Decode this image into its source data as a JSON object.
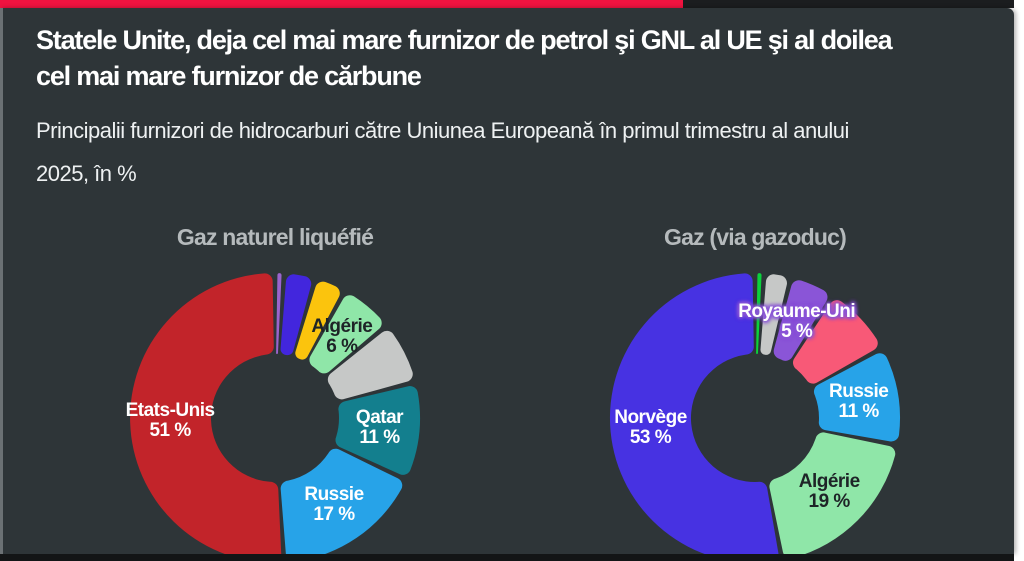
{
  "page": {
    "accent_bar_color": "#f01340",
    "top_strip_color": "#1b1d1f",
    "panel_background_color": "#2e3538",
    "bottom_strip_color": "#131516",
    "headline_color": "#ffffff",
    "chart_title_color": "#b5babc"
  },
  "header": {
    "title": "Statele Unite, deja cel mai mare furnizor de petrol şi GNL al UE şi al doilea cel mai mare furnizor de cărbune",
    "title_lines": [
      "Statele Unite, deja cel mai mare furnizor de petrol şi GNL al UE şi al doilea",
      "cel mai mare furnizor de cărbune"
    ],
    "subtitle": "Principalii furnizori de hidrocarburi către Uniunea Europeană în primul trimestru al anului 2025, în %",
    "subtitle_lines": [
      "Principalii furnizori de hidrocarburi către Uniunea Europeană în primul trimestru al anului",
      "2025, în %"
    ]
  },
  "chart_data": [
    {
      "type": "pie",
      "title": "Gaz naturel liquéfié",
      "unit": "%",
      "donut": true,
      "start_angle_deg": 0,
      "direction": "clockwise",
      "slices": [
        {
          "label": null,
          "value": 1,
          "color": "#9b64cd"
        },
        {
          "label": null,
          "value": 3.5,
          "color": "#4226dd"
        },
        {
          "label": null,
          "value": 3.5,
          "color": "#fbc40d"
        },
        {
          "label": "Algérie",
          "value": 6,
          "color": "#8fe6a8",
          "label_color": "#1e2427"
        },
        {
          "label": null,
          "value": 7,
          "color": "#c6c8c7"
        },
        {
          "label": "Qatar",
          "value": 11,
          "color": "#137f8e",
          "label_color": "#ffffff"
        },
        {
          "label": "Russie",
          "value": 17,
          "color": "#27a3e8",
          "label_color": "#ffffff"
        },
        {
          "label": "Etats-Unis",
          "value": 51,
          "color": "#c2242a",
          "label_color": "#ffffff"
        }
      ]
    },
    {
      "type": "pie",
      "title": "Gaz (via gazoduc)",
      "unit": "%",
      "donut": true,
      "start_angle_deg": 0,
      "direction": "clockwise",
      "slices": [
        {
          "label": null,
          "value": 1,
          "color": "#0bd23c"
        },
        {
          "label": null,
          "value": 3,
          "color": "#c6c8c7"
        },
        {
          "label": "Royaume-Uni",
          "value": 5,
          "color": "#8a55d7",
          "label_color": "#ffffff",
          "label_glow": "#8a55d7"
        },
        {
          "label": null,
          "value": 8,
          "color": "#f85977"
        },
        {
          "label": "Russie",
          "value": 11,
          "color": "#27a3e8",
          "label_color": "#ffffff"
        },
        {
          "label": "Algérie",
          "value": 19,
          "color": "#8fe6a8",
          "label_color": "#1e2427"
        },
        {
          "label": "Norvège",
          "value": 53,
          "color": "#4732e2",
          "label_color": "#ffffff"
        }
      ]
    }
  ]
}
